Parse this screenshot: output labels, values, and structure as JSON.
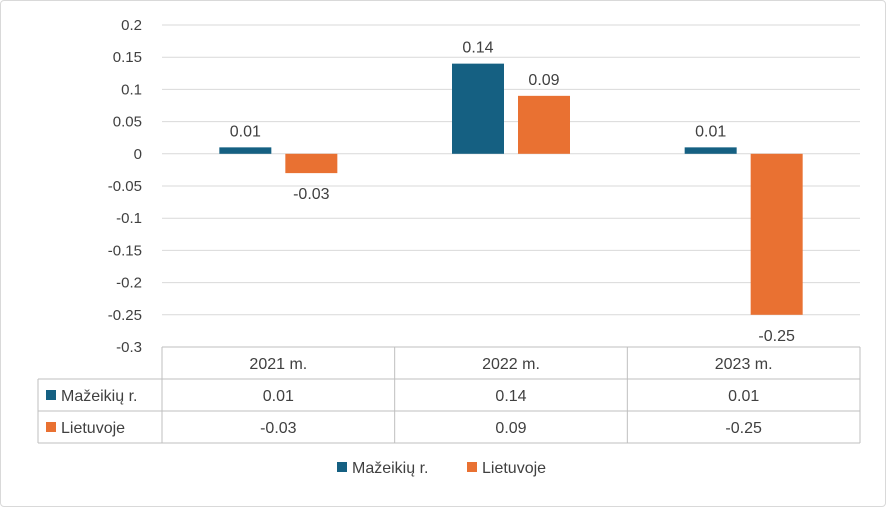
{
  "chart_data": {
    "type": "bar",
    "categories": [
      "2021 m.",
      "2022 m.",
      "2023 m."
    ],
    "series": [
      {
        "name": "Mažeikių r.",
        "values": [
          0.01,
          0.14,
          0.01
        ],
        "color": "#156082"
      },
      {
        "name": "Lietuvoje",
        "values": [
          -0.03,
          0.09,
          -0.25
        ],
        "color": "#E97132"
      }
    ],
    "data_labels": [
      [
        "0.01",
        "0.14",
        "0.01"
      ],
      [
        "-0.03",
        "0.09",
        "-0.25"
      ]
    ],
    "y_ticks": [
      "0.2",
      "0.15",
      "0.1",
      "0.05",
      "0",
      "-0.05",
      "-0.1",
      "-0.15",
      "-0.2",
      "-0.25",
      "-0.3"
    ],
    "ylim": [
      -0.3,
      0.2
    ],
    "grid": true,
    "legend_position": "bottom",
    "data_table": true
  }
}
